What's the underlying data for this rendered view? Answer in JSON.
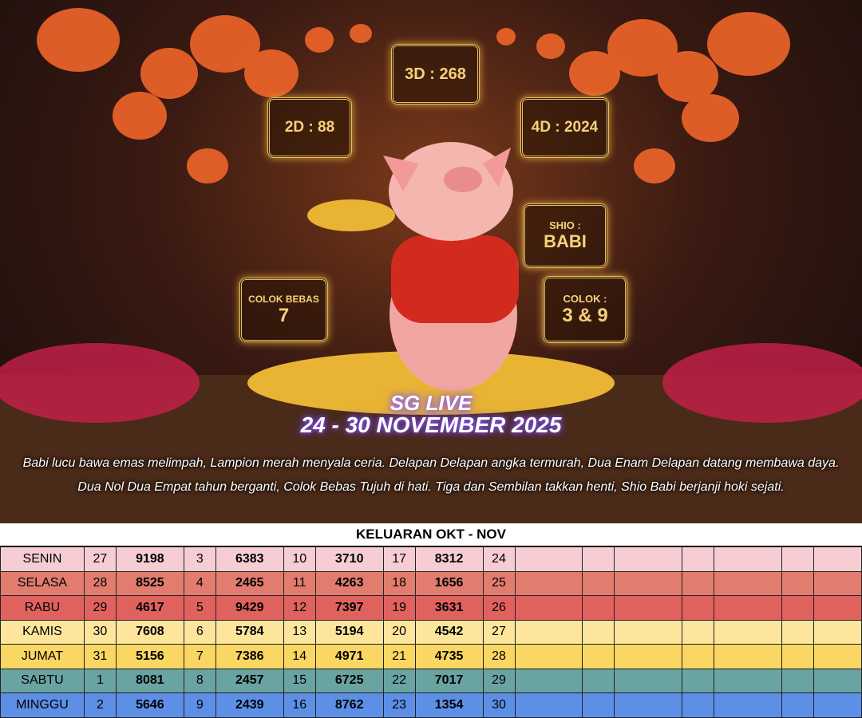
{
  "poster": {
    "d3": "3D : 268",
    "d2": "2D : 88",
    "d4": "4D : 2024",
    "shio_label": "SHIO :",
    "shio": "BABI",
    "colok_bebas_label": "COLOK BEBAS",
    "colok_bebas": "7",
    "colok_label": "COLOK :",
    "colok": "3 & 9",
    "title": "SG LIVE",
    "period": "24 - 30 NOVEMBER 2025",
    "poem": "Babi lucu bawa emas melimpah, Lampion merah menyala ceria. Delapan Delapan angka termurah, Dua Enam Delapan datang membawa daya. Dua Nol Dua Empat tahun berganti, Colok Bebas Tujuh di hati. Tiga dan Sembilan takkan henti, Shio Babi berjanji hoki sejati."
  },
  "table": {
    "title": "KELUARAN OKT - NOV",
    "rows": [
      [
        "SENIN",
        "27",
        "9198",
        "3",
        "6383",
        "10",
        "3710",
        "17",
        "8312",
        "24"
      ],
      [
        "SELASA",
        "28",
        "8525",
        "4",
        "2465",
        "11",
        "4263",
        "18",
        "1656",
        "25"
      ],
      [
        "RABU",
        "29",
        "4617",
        "5",
        "9429",
        "12",
        "7397",
        "19",
        "3631",
        "26"
      ],
      [
        "KAMIS",
        "30",
        "7608",
        "6",
        "5784",
        "13",
        "5194",
        "20",
        "4542",
        "27"
      ],
      [
        "JUMAT",
        "31",
        "5156",
        "7",
        "7386",
        "14",
        "4971",
        "21",
        "4735",
        "28"
      ],
      [
        "SABTU",
        "1",
        "8081",
        "8",
        "2457",
        "15",
        "6725",
        "22",
        "7017",
        "29"
      ],
      [
        "MINGGU",
        "2",
        "5646",
        "9",
        "2439",
        "16",
        "8762",
        "23",
        "1354",
        "30"
      ]
    ]
  }
}
